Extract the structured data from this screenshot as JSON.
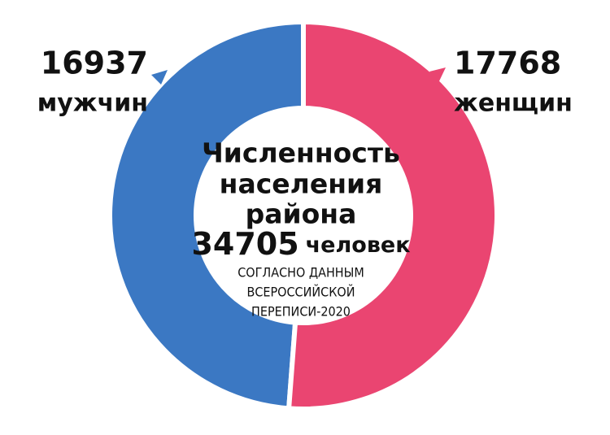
{
  "chart_data": {
    "type": "donut",
    "categories": [
      "мужчин",
      "женщин"
    ],
    "values": [
      16937,
      17768
    ],
    "colors": [
      "#3b78c3",
      "#ea4571"
    ],
    "center_title": [
      "Численность",
      "населения",
      "района"
    ],
    "total": 34705,
    "total_unit": "человек",
    "note": [
      "СОГЛАСНО ДАННЫМ",
      "ВСЕРОССИЙСКОЙ",
      "ПЕРЕПИСИ-2020"
    ]
  }
}
